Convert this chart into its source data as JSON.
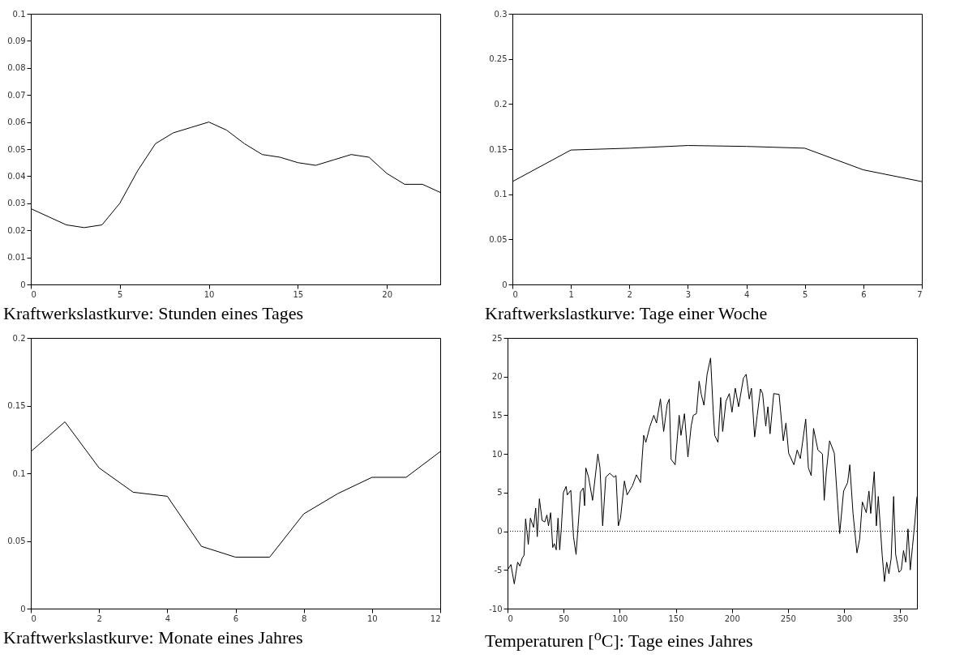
{
  "chart_data": [
    {
      "type": "line",
      "title": "Kraftwerkslastkurve: Stunden eines Tages",
      "color": "#000000",
      "x": [
        0,
        1,
        2,
        3,
        4,
        5,
        6,
        7,
        8,
        9,
        10,
        11,
        12,
        13,
        14,
        15,
        16,
        17,
        18,
        19,
        20,
        21,
        22,
        23
      ],
      "values": [
        0.028,
        0.025,
        0.022,
        0.021,
        0.022,
        0.03,
        0.042,
        0.052,
        0.056,
        0.058,
        0.06,
        0.057,
        0.052,
        0.048,
        0.047,
        0.045,
        0.044,
        0.046,
        0.048,
        0.047,
        0.041,
        0.037,
        0.037,
        0.034
      ],
      "xlim": [
        0,
        23
      ],
      "xticks": [
        0,
        5,
        10,
        15,
        20
      ],
      "ylim": [
        0,
        0.1
      ],
      "yticks": [
        0,
        0.01,
        0.02,
        0.03,
        0.04,
        0.05,
        0.06,
        0.07,
        0.08,
        0.09,
        0.1
      ]
    },
    {
      "type": "line",
      "title": "Kraftwerkslastkurve: Tage einer Woche",
      "color": "#000000",
      "x": [
        0,
        1,
        2,
        3,
        4,
        5,
        6,
        7
      ],
      "values": [
        0.114,
        0.149,
        0.151,
        0.154,
        0.153,
        0.151,
        0.127,
        0.114
      ],
      "xlim": [
        0,
        7
      ],
      "xticks": [
        0,
        1,
        2,
        3,
        4,
        5,
        6,
        7
      ],
      "ylim": [
        0,
        0.3
      ],
      "yticks": [
        0,
        0.05,
        0.1,
        0.15,
        0.2,
        0.25,
        0.3
      ]
    },
    {
      "type": "line",
      "title": "Kraftwerkslastkurve: Monate eines Jahres",
      "color": "#000000",
      "x": [
        0,
        1,
        2,
        3,
        4,
        5,
        6,
        7,
        8,
        9,
        10,
        11,
        12
      ],
      "values": [
        0.116,
        0.138,
        0.104,
        0.086,
        0.083,
        0.046,
        0.038,
        0.038,
        0.07,
        0.085,
        0.097,
        0.097,
        0.116
      ],
      "xlim": [
        0,
        12
      ],
      "xticks": [
        0,
        2,
        4,
        6,
        8,
        10,
        12
      ],
      "ylim": [
        0,
        0.2
      ],
      "yticks": [
        0,
        0.05,
        0.1,
        0.15,
        0.2
      ]
    },
    {
      "type": "line",
      "title": "Temperaturen [$^{o}$C]: Tage eines Jahres",
      "color": "#000000",
      "x": [
        0,
        3,
        6,
        9,
        11,
        13,
        14.7,
        16.1,
        18.5,
        20.4,
        23.2,
        25.1,
        26.5,
        28.4,
        30.8,
        33.2,
        35.1,
        36.5,
        38.4,
        40.3,
        41.7,
        43.4,
        45,
        46.5,
        47.9,
        49.8,
        52.2,
        53.3,
        56.4,
        58.8,
        61.1,
        65.1,
        67.5,
        68.7,
        69.8,
        72.2,
        75.8,
        80.5,
        82.4,
        84.8,
        87.6,
        91.2,
        94.8,
        96.7,
        98.8,
        100.7,
        104.2,
        106.6,
        111.4,
        114.9,
        118.5,
        121.4,
        123.3,
        126.8,
        130.4,
        132.8,
        136.3,
        139.2,
        142.3,
        144.2,
        145.8,
        149.4,
        153,
        154.6,
        157.7,
        160.8,
        163.7,
        165.6,
        168.4,
        170.8,
        172.7,
        175.1,
        177.9,
        181,
        183.4,
        184.7,
        187.6,
        190,
        191.8,
        194.7,
        197.7,
        200.1,
        203,
        206,
        210.3,
        212.7,
        215.5,
        217.4,
        220.3,
        222.6,
        225.5,
        227.4,
        230.2,
        232.1,
        234,
        237.3,
        242.1,
        245.8,
        248.2,
        250.6,
        255.3,
        258.2,
        261,
        263.4,
        265.8,
        268.2,
        270.7,
        272.8,
        276.7,
        280.7,
        282.3,
        284.2,
        287.1,
        291.3,
        296.1,
        299.6,
        303.2,
        305.1,
        308,
        311.5,
        313.9,
        316.3,
        319.8,
        322.2,
        323.8,
        326.9,
        328.8,
        330.5,
        334,
        336,
        338,
        340,
        342,
        344.2,
        346,
        349,
        351,
        353,
        355,
        357,
        359,
        361,
        363,
        365
      ],
      "values": [
        -5,
        -4.3,
        -6.8,
        -4,
        -4.5,
        -3.5,
        -3.1,
        1.6,
        -1.7,
        1.7,
        0.5,
        3,
        -0.7,
        4.2,
        1.4,
        1.2,
        2.1,
        0.7,
        2.4,
        -2.1,
        -1.6,
        -2.4,
        1.7,
        -2.4,
        0.3,
        5,
        5.8,
        4.7,
        5.3,
        -0.7,
        -3,
        5.1,
        5.6,
        3.3,
        8.2,
        7,
        4,
        10,
        8.2,
        0.7,
        7,
        7.5,
        7,
        7.2,
        0.7,
        1.7,
        6.5,
        4.7,
        5.9,
        7.3,
        6.3,
        12.4,
        11.5,
        13.5,
        15,
        14,
        17.1,
        12.9,
        16.4,
        17.1,
        9.3,
        8.6,
        15,
        12.4,
        15.2,
        9.6,
        13.6,
        15,
        15.2,
        19.4,
        17.7,
        16.3,
        20.3,
        22.4,
        15.4,
        12.4,
        11.5,
        17.3,
        12.9,
        16.8,
        17.8,
        15.4,
        18.5,
        16.1,
        19.8,
        20.3,
        17.1,
        18.5,
        12.2,
        15,
        18.4,
        17.8,
        13.6,
        16.1,
        12.6,
        17.8,
        17.7,
        11.7,
        14,
        10.1,
        8.6,
        10.5,
        9.4,
        11.9,
        14.5,
        8.2,
        7.2,
        13.3,
        10.5,
        10,
        4,
        7.7,
        11.7,
        10.1,
        -0.3,
        5.2,
        6.3,
        8.6,
        2.3,
        -2.8,
        -1,
        3.8,
        2.4,
        5.2,
        2.3,
        7.7,
        0.7,
        4.5,
        -3.1,
        -6.5,
        -4,
        -5.5,
        -3.5,
        4.5,
        -3,
        -5.3,
        -5,
        -2.5,
        -4,
        0.3,
        -5,
        -2,
        1,
        4.5
      ],
      "xlim": [
        0,
        365
      ],
      "xticks": [
        0,
        50,
        100,
        150,
        200,
        250,
        300,
        350
      ],
      "ylim": [
        -10,
        25
      ],
      "yticks": [
        -10,
        -5,
        0,
        5,
        10,
        15,
        20,
        25
      ],
      "ref_lines": [
        {
          "axis": "y",
          "value": 0,
          "color": "#000000",
          "line_style": "dotted"
        }
      ]
    }
  ]
}
